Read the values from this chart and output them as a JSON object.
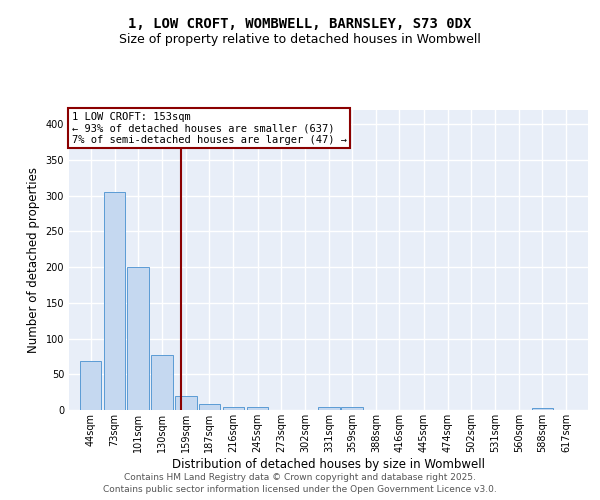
{
  "title": "1, LOW CROFT, WOMBWELL, BARNSLEY, S73 0DX",
  "subtitle": "Size of property relative to detached houses in Wombwell",
  "xlabel": "Distribution of detached houses by size in Wombwell",
  "ylabel": "Number of detached properties",
  "bins": [
    44,
    73,
    101,
    130,
    159,
    187,
    216,
    245,
    273,
    302,
    331,
    359,
    388,
    416,
    445,
    474,
    502,
    531,
    560,
    588,
    617
  ],
  "values": [
    68,
    305,
    200,
    77,
    20,
    8,
    4,
    4,
    0,
    0,
    4,
    4,
    0,
    0,
    0,
    0,
    0,
    0,
    0,
    3,
    0
  ],
  "bar_color": "#c5d8f0",
  "bar_edge_color": "#5b9bd5",
  "vline_x": 153,
  "vline_color": "#8b0000",
  "annotation_text": "1 LOW CROFT: 153sqm\n← 93% of detached houses are smaller (637)\n7% of semi-detached houses are larger (47) →",
  "annotation_box_color": "#ffffff",
  "annotation_box_edge_color": "#8b0000",
  "ylim": [
    0,
    420
  ],
  "yticks": [
    0,
    50,
    100,
    150,
    200,
    250,
    300,
    350,
    400
  ],
  "bg_color": "#e8eef8",
  "grid_color": "#ffffff",
  "footer_line1": "Contains HM Land Registry data © Crown copyright and database right 2025.",
  "footer_line2": "Contains public sector information licensed under the Open Government Licence v3.0.",
  "title_fontsize": 10,
  "subtitle_fontsize": 9,
  "axis_label_fontsize": 8.5,
  "tick_fontsize": 7,
  "annotation_fontsize": 7.5,
  "footer_fontsize": 6.5
}
